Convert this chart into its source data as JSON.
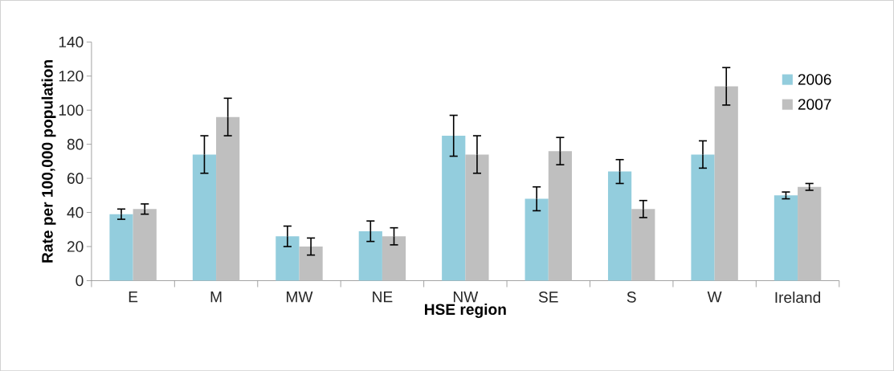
{
  "chart_data": {
    "type": "bar",
    "xlabel": "HSE region",
    "ylabel": "Rate per 100,000 population",
    "categories": [
      "E",
      "M",
      "MW",
      "NE",
      "NW",
      "SE",
      "S",
      "W",
      "Ireland"
    ],
    "series": [
      {
        "name": "2006",
        "color": "#93cddd",
        "values": [
          39,
          74,
          26,
          29,
          85,
          48,
          64,
          74,
          50
        ],
        "errors": [
          3,
          11,
          6,
          6,
          12,
          7,
          7,
          8,
          2
        ]
      },
      {
        "name": "2007",
        "color": "#bfbfbf",
        "values": [
          42,
          96,
          20,
          26,
          74,
          76,
          42,
          114,
          55
        ],
        "errors": [
          3,
          11,
          5,
          5,
          11,
          8,
          5,
          11,
          2
        ]
      }
    ],
    "ylim": [
      0,
      140
    ],
    "yticks": [
      0,
      20,
      40,
      60,
      80,
      100,
      120,
      140
    ],
    "legend": "top right"
  }
}
